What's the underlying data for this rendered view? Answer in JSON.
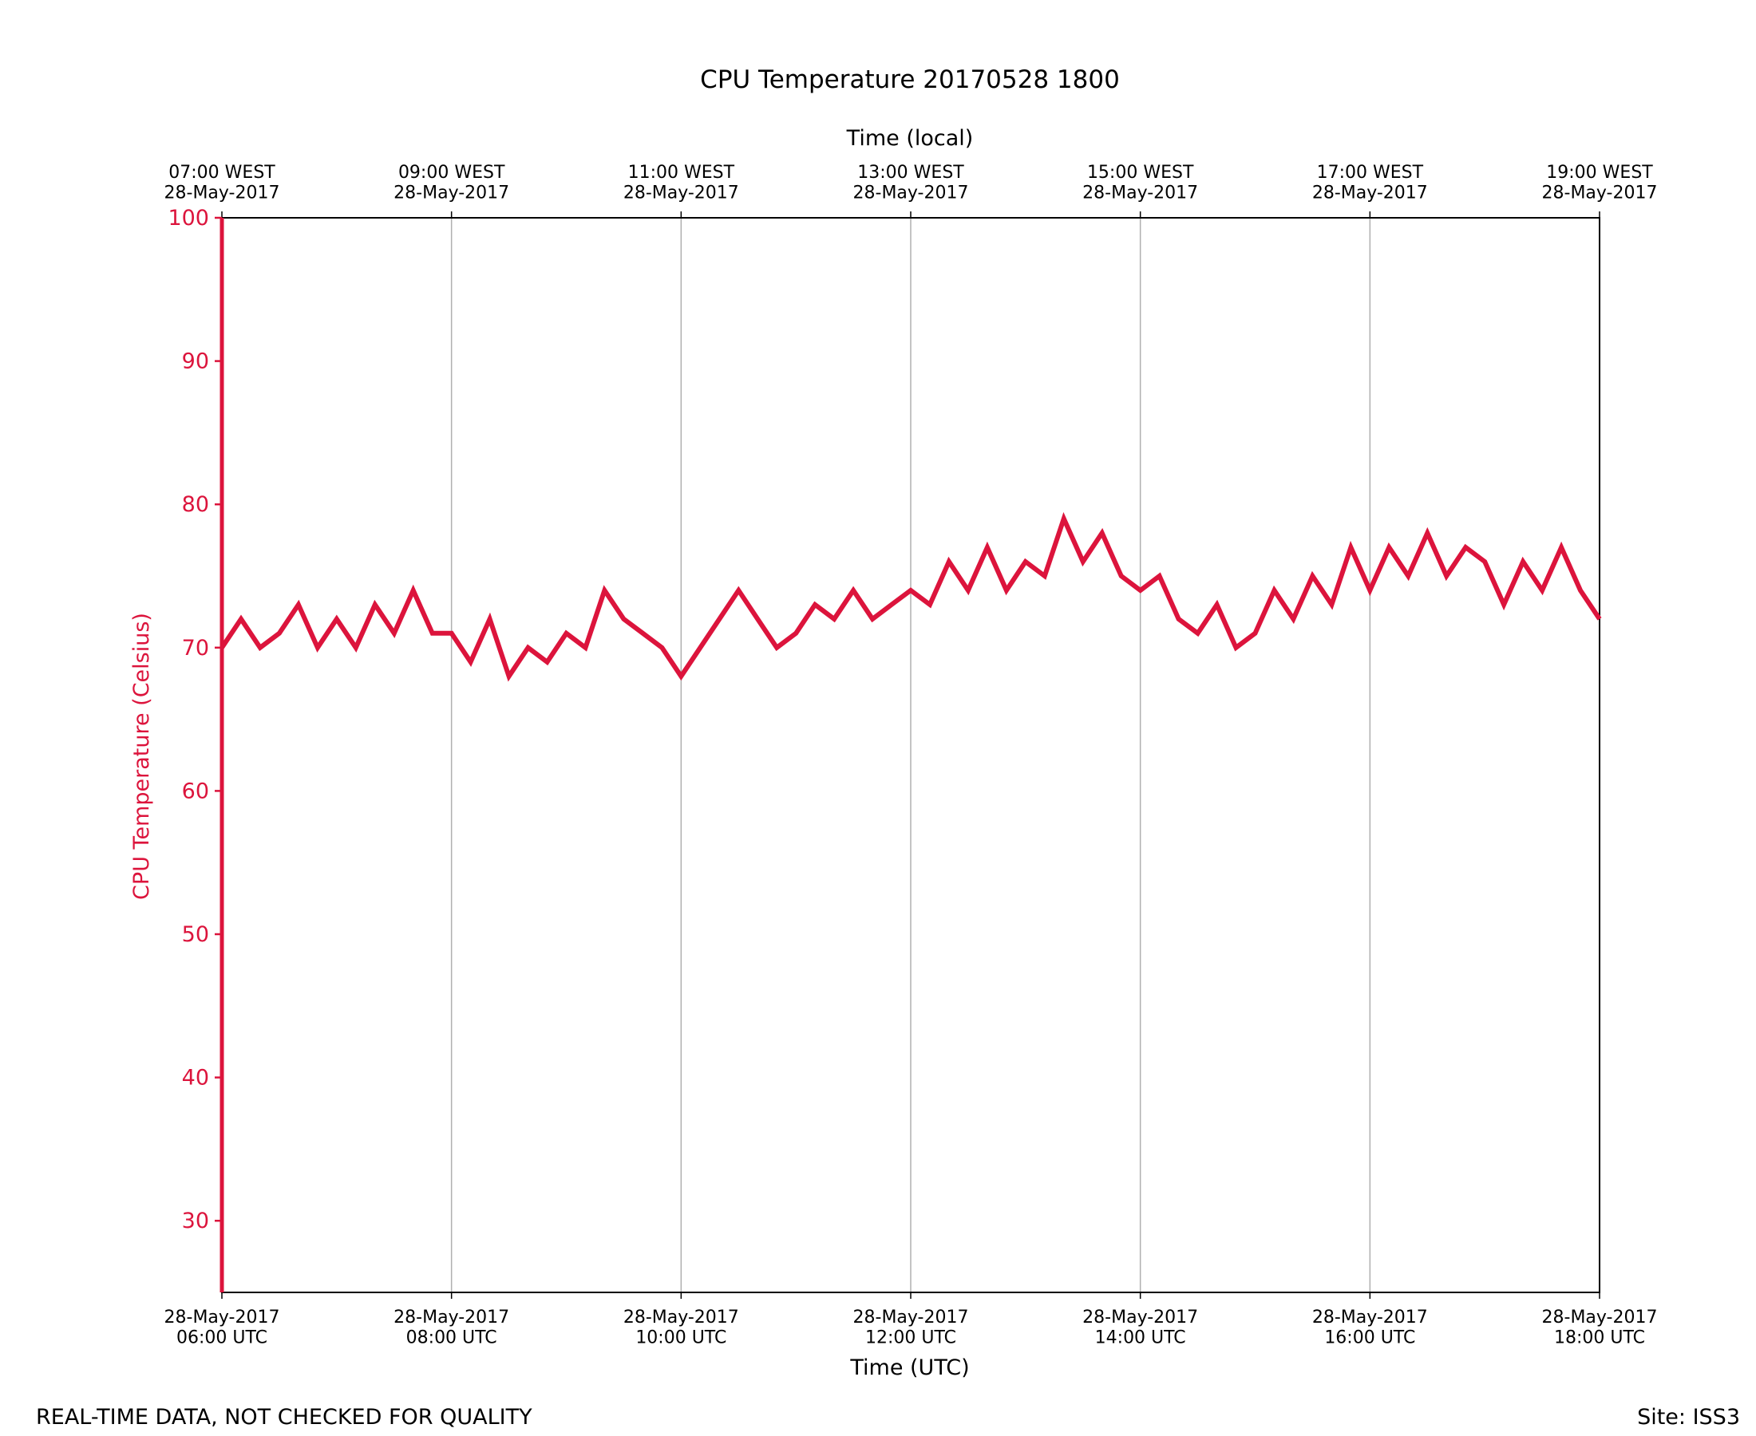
{
  "chart_data": {
    "type": "line",
    "title": "CPU Temperature 20170528 1800",
    "x_label": "Time (UTC)",
    "x2_label": "Time (local)",
    "y_label": "CPU Temperature (Celsius)",
    "footer_left": "REAL-TIME DATA, NOT CHECKED FOR QUALITY",
    "footer_right": "Site: ISS3",
    "xlim": [
      360,
      1080
    ],
    "xticks": [
      {
        "value": 360,
        "label": "28-May-2017\n06:00 UTC"
      },
      {
        "value": 480,
        "label": "28-May-2017\n08:00 UTC"
      },
      {
        "value": 600,
        "label": "28-May-2017\n10:00 UTC"
      },
      {
        "value": 720,
        "label": "28-May-2017\n12:00 UTC"
      },
      {
        "value": 840,
        "label": "28-May-2017\n14:00 UTC"
      },
      {
        "value": 960,
        "label": "28-May-2017\n16:00 UTC"
      },
      {
        "value": 1080,
        "label": "28-May-2017\n18:00 UTC"
      }
    ],
    "x2ticks": [
      {
        "value": 360,
        "label": "07:00 WEST\n28-May-2017"
      },
      {
        "value": 480,
        "label": "09:00 WEST\n28-May-2017"
      },
      {
        "value": 600,
        "label": "11:00 WEST\n28-May-2017"
      },
      {
        "value": 720,
        "label": "13:00 WEST\n28-May-2017"
      },
      {
        "value": 840,
        "label": "15:00 WEST\n28-May-2017"
      },
      {
        "value": 960,
        "label": "17:00 WEST\n28-May-2017"
      },
      {
        "value": 1080,
        "label": "19:00 WEST\n28-May-2017"
      }
    ],
    "ylim": [
      25,
      100
    ],
    "yticks": [
      30,
      40,
      50,
      60,
      70,
      80,
      90,
      100
    ],
    "grid": true,
    "series": [
      {
        "color": "#dc143c",
        "x": [
          360,
          370,
          380,
          390,
          400,
          410,
          420,
          430,
          440,
          450,
          460,
          470,
          480,
          490,
          500,
          510,
          520,
          530,
          540,
          550,
          560,
          570,
          580,
          590,
          600,
          610,
          620,
          630,
          640,
          650,
          660,
          670,
          680,
          690,
          700,
          710,
          720,
          730,
          740,
          750,
          760,
          770,
          780,
          790,
          800,
          810,
          820,
          830,
          840,
          850,
          860,
          870,
          880,
          890,
          900,
          910,
          920,
          930,
          940,
          950,
          960,
          970,
          980,
          990,
          1000,
          1010,
          1020,
          1030,
          1040,
          1050,
          1060,
          1070,
          1080
        ],
        "values": [
          70,
          72,
          70,
          71,
          73,
          70,
          72,
          70,
          73,
          71,
          74,
          71,
          71,
          69,
          72,
          68,
          70,
          69,
          71,
          70,
          74,
          72,
          71,
          70,
          68,
          70,
          72,
          74,
          72,
          70,
          71,
          73,
          72,
          74,
          72,
          73,
          74,
          73,
          76,
          74,
          77,
          74,
          76,
          75,
          79,
          76,
          78,
          75,
          74,
          75,
          72,
          71,
          73,
          70,
          71,
          74,
          72,
          75,
          73,
          77,
          74,
          77,
          75,
          78,
          75,
          77,
          76,
          73,
          76,
          74,
          77,
          74,
          72
        ]
      }
    ]
  }
}
